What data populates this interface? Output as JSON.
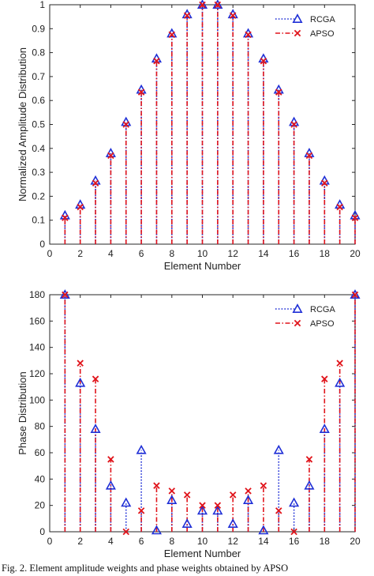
{
  "caption": "Fig. 2. Element amplitude weights and phase weights obtained by APSO",
  "colors": {
    "rcga": "#1f2fd6",
    "apso": "#e0141b",
    "axis": "#262626"
  },
  "chart_data": [
    {
      "type": "stem",
      "xlabel": "Element Number",
      "ylabel": "Normalized Amplitude Distribution",
      "xlim": [
        0,
        20
      ],
      "ylim": [
        0,
        1
      ],
      "xticks": [
        0,
        2,
        4,
        6,
        8,
        10,
        12,
        14,
        16,
        18,
        20
      ],
      "yticks": [
        0,
        0.1,
        0.2,
        0.3,
        0.4,
        0.5,
        0.6,
        0.7,
        0.8,
        0.9,
        1
      ],
      "legend_position": "top-right",
      "x": [
        1,
        2,
        3,
        4,
        5,
        6,
        7,
        8,
        9,
        10,
        11,
        12,
        13,
        14,
        15,
        16,
        17,
        18,
        19,
        20
      ],
      "series": [
        {
          "name": "RCGA",
          "marker": "triangle",
          "line": "dotted",
          "values": [
            0.12,
            0.165,
            0.265,
            0.38,
            0.51,
            0.645,
            0.775,
            0.88,
            0.96,
            1.0,
            1.0,
            0.96,
            0.88,
            0.775,
            0.645,
            0.51,
            0.38,
            0.265,
            0.165,
            0.12
          ]
        },
        {
          "name": "APSO",
          "marker": "x",
          "line": "dash-dot",
          "values": [
            0.11,
            0.155,
            0.255,
            0.37,
            0.5,
            0.635,
            0.765,
            0.875,
            0.955,
            1.0,
            1.0,
            0.955,
            0.875,
            0.765,
            0.635,
            0.5,
            0.37,
            0.255,
            0.155,
            0.11
          ]
        }
      ]
    },
    {
      "type": "stem",
      "xlabel": "Element Number",
      "ylabel": "Phase Distribution",
      "xlim": [
        0,
        20
      ],
      "ylim": [
        0,
        180
      ],
      "xticks": [
        0,
        2,
        4,
        6,
        8,
        10,
        12,
        14,
        16,
        18,
        20
      ],
      "yticks": [
        0,
        20,
        40,
        60,
        80,
        100,
        120,
        140,
        160,
        180
      ],
      "legend_position": "top-right",
      "x": [
        1,
        2,
        3,
        4,
        5,
        6,
        7,
        8,
        9,
        10,
        11,
        12,
        13,
        14,
        15,
        16,
        17,
        18,
        19,
        20
      ],
      "series": [
        {
          "name": "RCGA",
          "marker": "triangle",
          "line": "dotted",
          "values": [
            180,
            113,
            78,
            35,
            22,
            62,
            1,
            24,
            6,
            16,
            16,
            6,
            24,
            1,
            62,
            22,
            35,
            78,
            113,
            180
          ]
        },
        {
          "name": "APSO",
          "marker": "x",
          "line": "dash-dot",
          "values": [
            180,
            128,
            116,
            55,
            0,
            16,
            35,
            31,
            28,
            20,
            20,
            28,
            31,
            35,
            16,
            0,
            55,
            116,
            128,
            180
          ]
        }
      ]
    }
  ]
}
